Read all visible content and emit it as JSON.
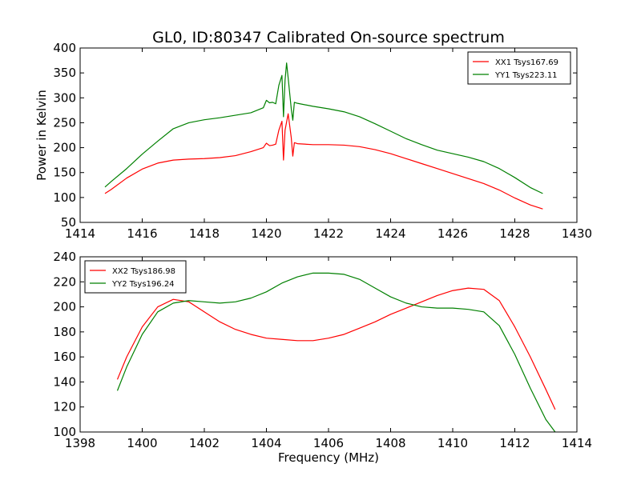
{
  "title": "GL0, ID:80347 Calibrated On-source spectrum",
  "chart_data": [
    {
      "type": "line",
      "ylabel": "Power in Kelvin",
      "xlabel": "",
      "xlim": [
        1414,
        1430
      ],
      "ylim": [
        50,
        400
      ],
      "xticks": [
        1414,
        1416,
        1418,
        1420,
        1422,
        1424,
        1426,
        1428,
        1430
      ],
      "yticks": [
        50,
        100,
        150,
        200,
        250,
        300,
        350,
        400
      ],
      "legend_position": "top-right",
      "grid": false,
      "series": [
        {
          "name": "XX1 Tsys167.69",
          "color": "#ff0000",
          "x": [
            1414.8,
            1415.0,
            1415.5,
            1416.0,
            1416.5,
            1417.0,
            1417.5,
            1418.0,
            1418.5,
            1419.0,
            1419.5,
            1419.9,
            1420.0,
            1420.1,
            1420.2,
            1420.3,
            1420.4,
            1420.5,
            1420.55,
            1420.6,
            1420.7,
            1420.8,
            1420.85,
            1420.9,
            1421.0,
            1421.5,
            1422.0,
            1422.5,
            1423.0,
            1423.5,
            1424.0,
            1424.5,
            1425.0,
            1425.5,
            1426.0,
            1426.5,
            1427.0,
            1427.5,
            1428.0,
            1428.5,
            1428.9
          ],
          "y": [
            108,
            116,
            139,
            157,
            169,
            175,
            177,
            178,
            180,
            184,
            192,
            200,
            209,
            204,
            205,
            207,
            235,
            253,
            175,
            235,
            268,
            220,
            183,
            210,
            208,
            206,
            206,
            205,
            202,
            196,
            188,
            178,
            168,
            158,
            148,
            138,
            128,
            115,
            99,
            85,
            77
          ]
        },
        {
          "name": "YY1 Tsys223.11",
          "color": "#008000",
          "x": [
            1414.8,
            1415.0,
            1415.5,
            1416.0,
            1416.5,
            1417.0,
            1417.5,
            1418.0,
            1418.5,
            1419.0,
            1419.5,
            1419.9,
            1420.0,
            1420.1,
            1420.2,
            1420.3,
            1420.4,
            1420.5,
            1420.55,
            1420.6,
            1420.65,
            1420.7,
            1420.8,
            1420.85,
            1420.9,
            1421.0,
            1421.5,
            1422.0,
            1422.5,
            1423.0,
            1423.5,
            1424.0,
            1424.5,
            1425.0,
            1425.5,
            1426.0,
            1426.5,
            1427.0,
            1427.5,
            1428.0,
            1428.5,
            1428.9
          ],
          "y": [
            121,
            132,
            158,
            187,
            213,
            238,
            250,
            256,
            260,
            265,
            270,
            280,
            295,
            290,
            291,
            288,
            325,
            345,
            262,
            335,
            370,
            340,
            278,
            255,
            291,
            289,
            283,
            278,
            272,
            262,
            248,
            233,
            218,
            206,
            195,
            188,
            181,
            172,
            158,
            140,
            120,
            108
          ]
        }
      ]
    },
    {
      "type": "line",
      "xlabel": "Frequency (MHz)",
      "ylabel": "",
      "xlim": [
        1398,
        1414
      ],
      "ylim": [
        100,
        240
      ],
      "xticks": [
        1398,
        1400,
        1402,
        1404,
        1406,
        1408,
        1410,
        1412,
        1414
      ],
      "yticks": [
        100,
        120,
        140,
        160,
        180,
        200,
        220,
        240
      ],
      "legend_position": "top-left",
      "grid": false,
      "series": [
        {
          "name": "XX2 Tsys186.98",
          "color": "#ff0000",
          "x": [
            1399.2,
            1399.5,
            1400.0,
            1400.5,
            1401.0,
            1401.5,
            1402.0,
            1402.5,
            1403.0,
            1403.5,
            1404.0,
            1404.5,
            1405.0,
            1405.5,
            1406.0,
            1406.5,
            1407.0,
            1407.5,
            1408.0,
            1408.5,
            1409.0,
            1409.5,
            1410.0,
            1410.5,
            1411.0,
            1411.5,
            1412.0,
            1412.5,
            1413.0,
            1413.3
          ],
          "y": [
            142,
            160,
            184,
            200,
            206,
            204,
            196,
            188,
            182,
            178,
            175,
            174,
            173,
            173,
            175,
            178,
            183,
            188,
            194,
            199,
            204,
            209,
            213,
            215,
            214,
            205,
            184,
            160,
            134,
            118
          ]
        },
        {
          "name": "YY2 Tsys196.24",
          "color": "#008000",
          "x": [
            1399.2,
            1399.5,
            1400.0,
            1400.5,
            1401.0,
            1401.5,
            1402.0,
            1402.5,
            1403.0,
            1403.5,
            1404.0,
            1404.5,
            1405.0,
            1405.5,
            1406.0,
            1406.5,
            1407.0,
            1407.5,
            1408.0,
            1408.5,
            1409.0,
            1409.5,
            1410.0,
            1410.5,
            1411.0,
            1411.5,
            1412.0,
            1412.5,
            1413.0,
            1413.3
          ],
          "y": [
            133,
            152,
            178,
            196,
            203,
            205,
            204,
            203,
            204,
            207,
            212,
            219,
            224,
            227,
            227,
            226,
            222,
            215,
            208,
            203,
            200,
            199,
            199,
            198,
            196,
            185,
            162,
            135,
            110,
            100
          ]
        }
      ]
    }
  ]
}
